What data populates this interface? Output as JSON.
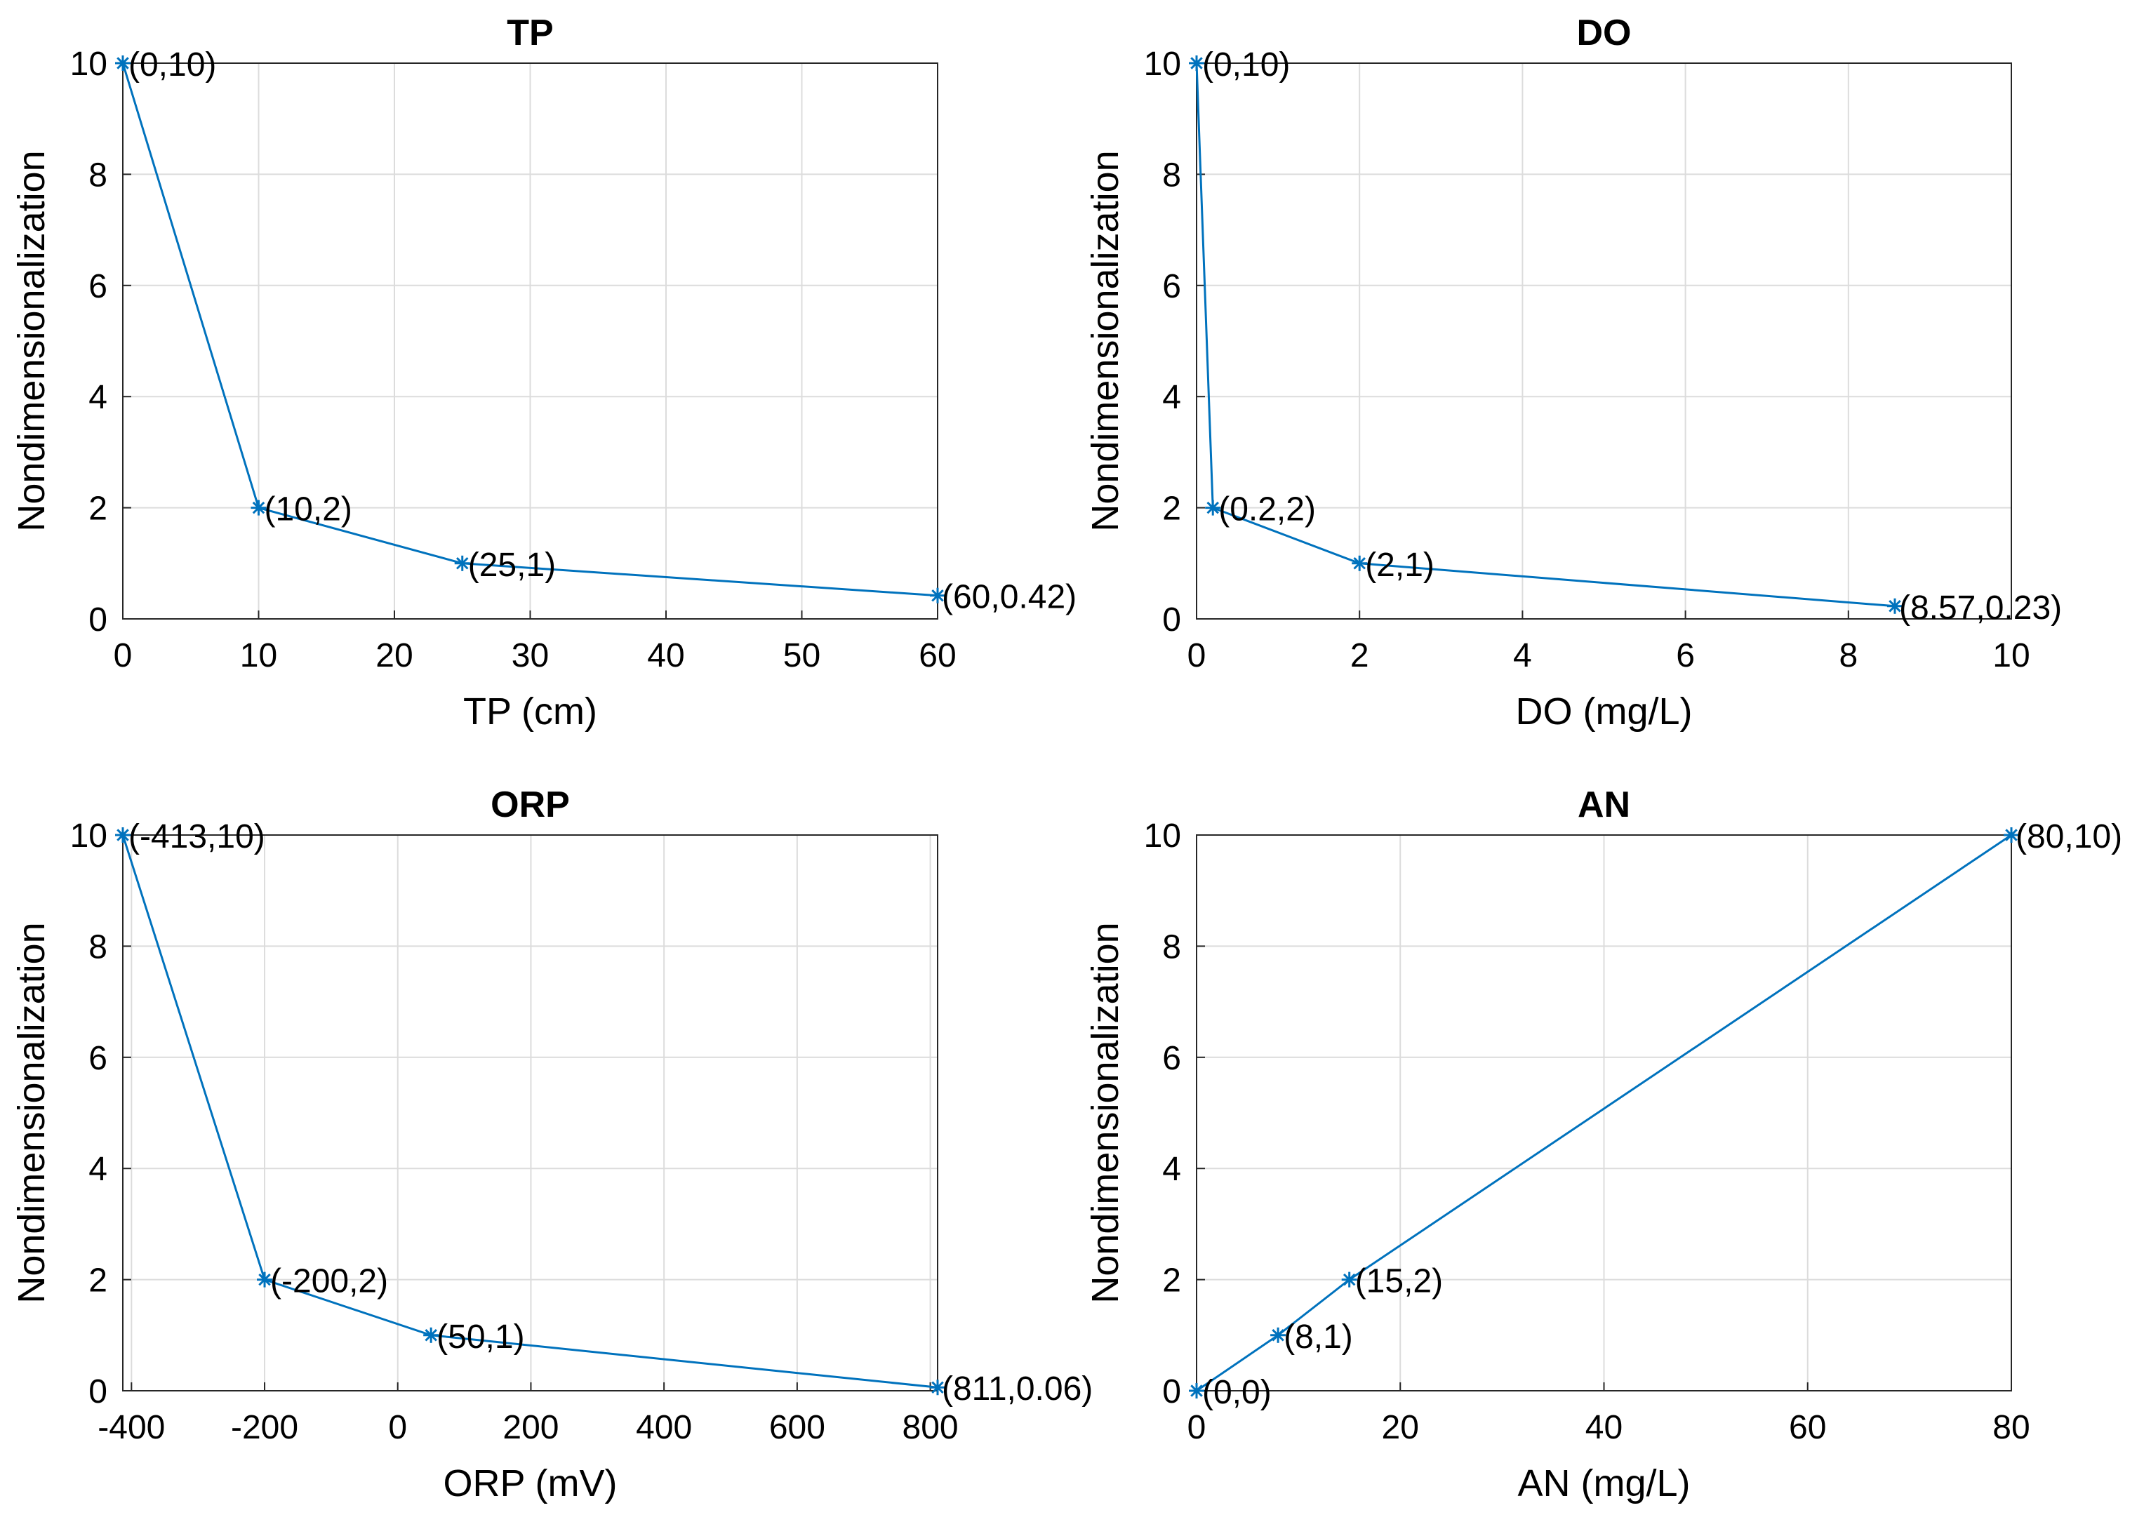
{
  "colors": {
    "series": "#0072BD",
    "grid": "#dcdcdc",
    "axis": "#262626"
  },
  "chart_data": [
    {
      "type": "line",
      "title": "TP",
      "xlabel": "TP (cm)",
      "ylabel": "Nondimensionalization",
      "xlim": [
        0,
        60
      ],
      "ylim": [
        0,
        10
      ],
      "xticks": [
        0,
        10,
        20,
        30,
        40,
        50,
        60
      ],
      "xtick_labels": [
        "0",
        "10",
        "20",
        "30",
        "40",
        "50",
        "60"
      ],
      "yticks": [
        0,
        2,
        4,
        6,
        8,
        10
      ],
      "ytick_labels": [
        "0",
        "2",
        "4",
        "6",
        "8",
        "10"
      ],
      "grid": true,
      "marker": "*",
      "x": [
        0,
        10,
        25,
        60
      ],
      "y": [
        10,
        2,
        1,
        0.42
      ],
      "point_labels": [
        "(0,10)",
        "(10,2)",
        "(25,1)",
        "(60,0.42)"
      ]
    },
    {
      "type": "line",
      "title": "DO",
      "xlabel": "DO (mg/L)",
      "ylabel": "Nondimensionalization",
      "xlim": [
        0,
        10
      ],
      "ylim": [
        0,
        10
      ],
      "xticks": [
        0,
        2,
        4,
        6,
        8,
        10
      ],
      "xtick_labels": [
        "0",
        "2",
        "4",
        "6",
        "8",
        "10"
      ],
      "yticks": [
        0,
        2,
        4,
        6,
        8,
        10
      ],
      "ytick_labels": [
        "0",
        "2",
        "4",
        "6",
        "8",
        "10"
      ],
      "grid": true,
      "marker": "*",
      "x": [
        0,
        0.2,
        2,
        8.57
      ],
      "y": [
        10,
        2,
        1,
        0.23
      ],
      "point_labels": [
        "(0,10)",
        "(0.2,2)",
        "(2,1)",
        "(8.57,0.23)"
      ]
    },
    {
      "type": "line",
      "title": "ORP",
      "xlabel": "ORP (mV)",
      "ylabel": "Nondimensionalization",
      "xlim": [
        -413,
        811
      ],
      "ylim": [
        0,
        10
      ],
      "xticks": [
        -400,
        -200,
        0,
        200,
        400,
        600,
        800
      ],
      "xtick_labels": [
        "-400",
        "-200",
        "0",
        "200",
        "400",
        "600",
        "800"
      ],
      "yticks": [
        0,
        2,
        4,
        6,
        8,
        10
      ],
      "ytick_labels": [
        "0",
        "2",
        "4",
        "6",
        "8",
        "10"
      ],
      "grid": true,
      "marker": "*",
      "x": [
        -413,
        -200,
        50,
        811
      ],
      "y": [
        10,
        2,
        1,
        0.06
      ],
      "point_labels": [
        "(-413,10)",
        "(-200,2)",
        "(50,1)",
        "(811,0.06)"
      ]
    },
    {
      "type": "line",
      "title": "AN",
      "xlabel": "AN (mg/L)",
      "ylabel": "Nondimensionalization",
      "xlim": [
        0,
        80
      ],
      "ylim": [
        0,
        10
      ],
      "xticks": [
        0,
        20,
        40,
        60,
        80
      ],
      "xtick_labels": [
        "0",
        "20",
        "40",
        "60",
        "80"
      ],
      "yticks": [
        0,
        2,
        4,
        6,
        8,
        10
      ],
      "ytick_labels": [
        "0",
        "2",
        "4",
        "6",
        "8",
        "10"
      ],
      "grid": true,
      "marker": "*",
      "x": [
        0,
        8,
        15,
        80
      ],
      "y": [
        0,
        1,
        2,
        10
      ],
      "point_labels": [
        "(0,0)",
        "(8,1)",
        "(15,2)",
        "(80,10)"
      ]
    }
  ]
}
